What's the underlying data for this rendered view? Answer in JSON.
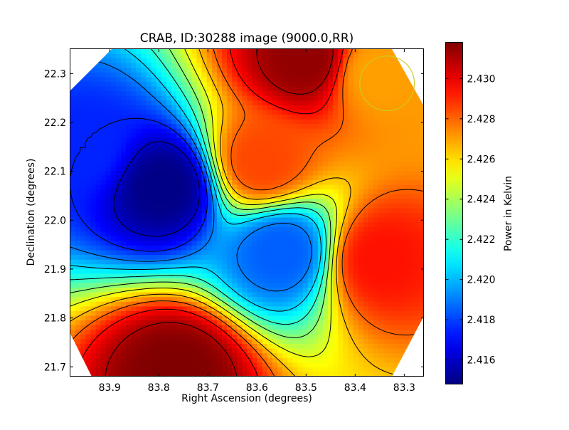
{
  "chart_data": {
    "type": "heatmap",
    "title": "CRAB, ID:30288 image (9000.0,RR)",
    "xlabel": "Right Ascension (degrees)",
    "ylabel": "Declination (degrees)",
    "colorbar_label": "Power in Kelvin",
    "xlim": [
      83.98,
      83.26
    ],
    "ylim": [
      21.68,
      22.35
    ],
    "x_ticks": [
      83.9,
      83.8,
      83.7,
      83.6,
      83.5,
      83.4,
      83.3
    ],
    "x_tick_labels": [
      "83.9",
      "83.8",
      "83.7",
      "83.6",
      "83.5",
      "83.4",
      "83.3"
    ],
    "y_ticks": [
      21.7,
      21.8,
      21.9,
      22.0,
      22.1,
      22.2,
      22.3
    ],
    "y_tick_labels": [
      "21.7",
      "21.8",
      "21.9",
      "22.0",
      "22.1",
      "22.2",
      "22.3"
    ],
    "colorbar_range": [
      2.4148,
      2.4318
    ],
    "colorbar_ticks": [
      2.416,
      2.418,
      2.42,
      2.422,
      2.424,
      2.426,
      2.428,
      2.43
    ],
    "colorbar_tick_labels": [
      "2.416",
      "2.418",
      "2.420",
      "2.422",
      "2.424",
      "2.426",
      "2.428",
      "2.430"
    ],
    "colormap": "jet",
    "contour_color": "#000000",
    "baseline_value": 2.4245,
    "features": [
      {
        "ra": 83.5,
        "dec": 22.33,
        "value": 2.4315
      },
      {
        "ra": 83.59,
        "dec": 22.12,
        "value": 2.4285
      },
      {
        "ra": 83.79,
        "dec": 22.07,
        "value": 2.4149
      },
      {
        "ra": 83.95,
        "dec": 22.15,
        "value": 2.4175
      },
      {
        "ra": 83.55,
        "dec": 21.935,
        "value": 2.4185
      },
      {
        "ra": 83.35,
        "dec": 21.92,
        "value": 2.4294
      },
      {
        "ra": 83.765,
        "dec": 21.69,
        "value": 2.4318
      },
      {
        "ra": 83.36,
        "dec": 22.3,
        "value": 2.427
      }
    ],
    "beam_circle": {
      "ra": 83.335,
      "dec": 22.28,
      "radius_deg": 0.056,
      "color": "#cccc22"
    },
    "grid": false,
    "legend": "none"
  }
}
